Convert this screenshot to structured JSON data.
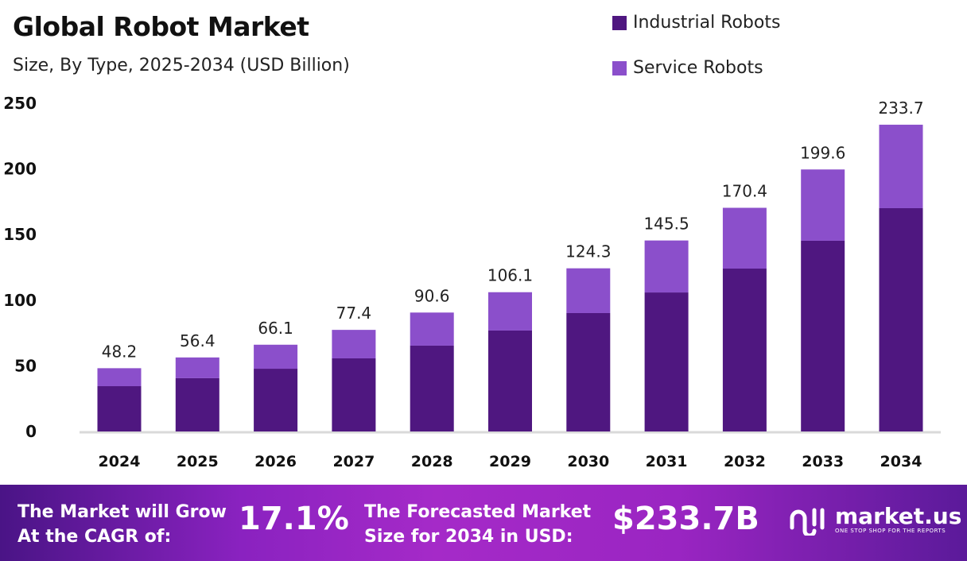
{
  "chart_data": {
    "type": "stacked-bar",
    "title": "Global Robot Market",
    "subtitle": "Size, By Type, 2025-2034 (USD Billion)",
    "categories": [
      "2024",
      "2025",
      "2026",
      "2027",
      "2028",
      "2029",
      "2030",
      "2031",
      "2032",
      "2033",
      "2034"
    ],
    "series": [
      {
        "name": "Industrial Robots",
        "color": "#4f1780",
        "values": [
          34.5,
          40.6,
          47.8,
          55.7,
          65.4,
          76.9,
          90.2,
          105.9,
          124.1,
          145.3,
          170.1
        ]
      },
      {
        "name": "Service Robots",
        "color": "#8b4fcb",
        "values": [
          13.7,
          15.8,
          18.3,
          21.7,
          25.2,
          29.2,
          34.1,
          39.6,
          46.3,
          54.3,
          63.6
        ]
      }
    ],
    "totals": [
      "48.2",
      "56.4",
      "66.1",
      "77.4",
      "90.6",
      "106.1",
      "124.3",
      "145.5",
      "170.4",
      "199.6",
      "233.7"
    ],
    "yticks": [
      0,
      50,
      100,
      150,
      200,
      250
    ],
    "ylim": [
      0,
      250
    ],
    "grid": false,
    "legend": "top-right"
  },
  "footer": {
    "cagr_label_line1": "The Market will Grow",
    "cagr_label_line2": "At the CAGR of:",
    "cagr_value": "17.1%",
    "forecast_label_line1": "The Forecasted Market",
    "forecast_label_line2": "Size for 2034 in USD:",
    "forecast_value": "$233.7B",
    "logo_name": "market.us",
    "logo_tagline": "ONE STOP SHOP FOR THE REPORTS"
  }
}
